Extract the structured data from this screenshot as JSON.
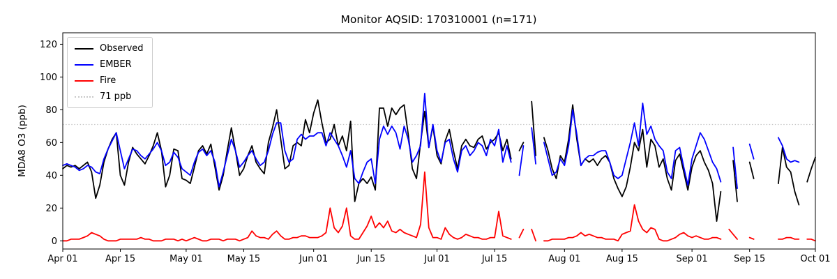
{
  "chart_data": {
    "type": "line",
    "title": "Monitor AQSID: 170310001 (n=171)",
    "ylabel": "MDA8 O3 (ppb)",
    "ylim": [
      -5,
      127
    ],
    "y_ticks": [
      0,
      20,
      40,
      60,
      80,
      100,
      120
    ],
    "x_range_days": 183,
    "x_ticks": [
      {
        "day": 0,
        "label": "Apr 01"
      },
      {
        "day": 14,
        "label": "Apr 15"
      },
      {
        "day": 30,
        "label": "May 01"
      },
      {
        "day": 44,
        "label": "May 15"
      },
      {
        "day": 61,
        "label": "Jun 01"
      },
      {
        "day": 75,
        "label": "Jun 15"
      },
      {
        "day": 91,
        "label": "Jul 01"
      },
      {
        "day": 105,
        "label": "Jul 15"
      },
      {
        "day": 122,
        "label": "Aug 01"
      },
      {
        "day": 136,
        "label": "Aug 15"
      },
      {
        "day": 153,
        "label": "Sep 01"
      },
      {
        "day": 167,
        "label": "Sep 15"
      },
      {
        "day": 183,
        "label": "Oct 01"
      }
    ],
    "legend_position": "upper left",
    "grid": false,
    "threshold": {
      "value": 71,
      "label": "71 ppb",
      "color": "#c8c8c8"
    },
    "series": [
      {
        "name": "Observed",
        "color": "#000000",
        "values": [
          44,
          46,
          45,
          46,
          44,
          46,
          48,
          42,
          26,
          34,
          48,
          56,
          62,
          66,
          40,
          34,
          48,
          57,
          53,
          50,
          47,
          52,
          58,
          66,
          55,
          33,
          40,
          56,
          55,
          38,
          37,
          35,
          45,
          55,
          58,
          53,
          59,
          45,
          31,
          40,
          55,
          69,
          55,
          40,
          44,
          52,
          58,
          48,
          44,
          41,
          60,
          69,
          80,
          62,
          44,
          46,
          58,
          60,
          58,
          74,
          66,
          78,
          86,
          72,
          60,
          62,
          71,
          58,
          64,
          55,
          73,
          24,
          35,
          38,
          35,
          39,
          31,
          81,
          81,
          70,
          81,
          77,
          81,
          83,
          65,
          44,
          38,
          60,
          79,
          57,
          70,
          52,
          47,
          61,
          68,
          55,
          44,
          58,
          62,
          58,
          57,
          62,
          64,
          56,
          60,
          62,
          66,
          55,
          62,
          50,
          null,
          55,
          60,
          null,
          85,
          52,
          null,
          63,
          55,
          44,
          38,
          52,
          48,
          62,
          83,
          62,
          46,
          50,
          48,
          50,
          46,
          50,
          52,
          48,
          38,
          32,
          27,
          33,
          45,
          60,
          55,
          68,
          45,
          62,
          58,
          45,
          50,
          38,
          31,
          49,
          53,
          42,
          31,
          45,
          52,
          55,
          48,
          43,
          35,
          12,
          30,
          null,
          null,
          49,
          24,
          null,
          null,
          48,
          38,
          null,
          null,
          null,
          null,
          null,
          35,
          57,
          45,
          42,
          30,
          22,
          null,
          36,
          44,
          51
        ]
      },
      {
        "name": "EMBER",
        "color": "#0000ff",
        "values": [
          46,
          47,
          46,
          45,
          43,
          44,
          46,
          45,
          42,
          41,
          50,
          56,
          61,
          66,
          55,
          44,
          50,
          56,
          55,
          52,
          50,
          53,
          56,
          60,
          55,
          46,
          48,
          54,
          51,
          44,
          42,
          40,
          48,
          54,
          56,
          52,
          55,
          48,
          33,
          42,
          52,
          62,
          55,
          45,
          48,
          52,
          55,
          50,
          46,
          48,
          55,
          65,
          72,
          72,
          55,
          48,
          50,
          62,
          65,
          62,
          64,
          64,
          66,
          66,
          58,
          66,
          62,
          58,
          52,
          45,
          55,
          38,
          35,
          42,
          48,
          50,
          35,
          62,
          70,
          65,
          70,
          66,
          56,
          70,
          62,
          48,
          52,
          58,
          90,
          57,
          71,
          55,
          48,
          60,
          62,
          50,
          42,
          55,
          58,
          52,
          55,
          60,
          58,
          52,
          62,
          58,
          68,
          48,
          58,
          48,
          null,
          40,
          58,
          null,
          69,
          47,
          null,
          60,
          50,
          40,
          42,
          50,
          46,
          58,
          80,
          65,
          46,
          50,
          52,
          52,
          54,
          55,
          55,
          48,
          40,
          38,
          40,
          50,
          60,
          72,
          58,
          84,
          65,
          70,
          62,
          58,
          55,
          42,
          38,
          55,
          57,
          45,
          34,
          50,
          58,
          66,
          62,
          55,
          48,
          44,
          36,
          null,
          null,
          57,
          32,
          null,
          null,
          59,
          50,
          null,
          null,
          null,
          null,
          null,
          63,
          58,
          50,
          48,
          49,
          48,
          null,
          null,
          null,
          null
        ]
      },
      {
        "name": "Fire",
        "color": "#ff0000",
        "values": [
          0,
          0,
          1,
          1,
          1,
          2,
          3,
          5,
          4,
          3,
          1,
          0,
          0,
          0,
          1,
          1,
          1,
          1,
          1,
          2,
          1,
          1,
          0,
          0,
          0,
          1,
          1,
          1,
          0,
          1,
          0,
          1,
          2,
          1,
          0,
          0,
          1,
          1,
          1,
          0,
          1,
          1,
          1,
          0,
          1,
          2,
          6,
          3,
          2,
          2,
          1,
          4,
          6,
          3,
          1,
          1,
          2,
          2,
          3,
          3,
          2,
          2,
          2,
          3,
          5,
          20,
          8,
          5,
          9,
          20,
          3,
          1,
          1,
          5,
          9,
          15,
          8,
          11,
          8,
          12,
          6,
          5,
          7,
          5,
          4,
          3,
          2,
          10,
          42,
          8,
          2,
          2,
          1,
          8,
          4,
          2,
          1,
          2,
          4,
          3,
          2,
          2,
          1,
          1,
          2,
          2,
          18,
          3,
          2,
          1,
          null,
          2,
          7,
          null,
          7,
          0,
          null,
          0,
          0,
          1,
          1,
          1,
          1,
          2,
          2,
          3,
          5,
          3,
          4,
          3,
          2,
          2,
          1,
          1,
          1,
          0,
          4,
          5,
          6,
          22,
          12,
          7,
          5,
          8,
          7,
          1,
          0,
          0,
          1,
          2,
          4,
          5,
          3,
          2,
          3,
          2,
          1,
          1,
          2,
          2,
          1,
          null,
          7,
          4,
          1,
          null,
          null,
          2,
          1,
          null,
          null,
          null,
          null,
          null,
          1,
          1,
          2,
          2,
          1,
          1,
          null,
          1,
          1,
          0
        ]
      }
    ]
  },
  "legend": {
    "observed_label": "Observed",
    "ember_label": "EMBER",
    "fire_label": "Fire",
    "threshold_label": "71 ppb"
  }
}
